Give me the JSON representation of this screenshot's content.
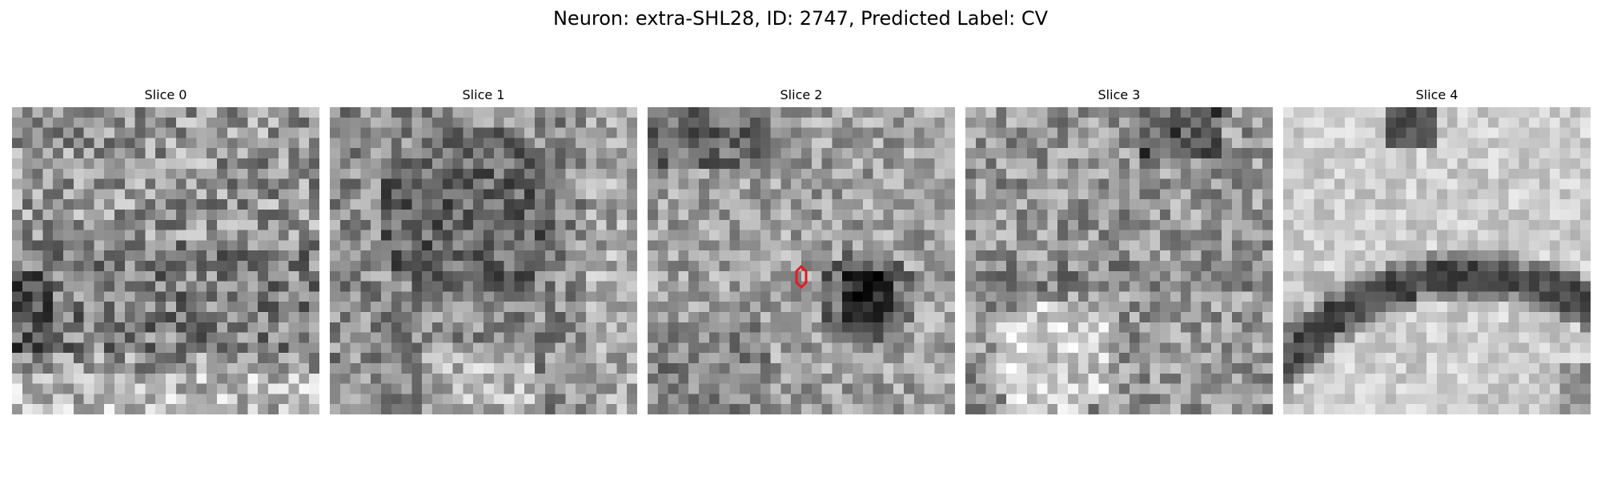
{
  "figure": {
    "title": "Neuron: extra-SHL28, ID: 2747, Predicted Label: CV"
  },
  "slices": [
    {
      "label": "Slice 0"
    },
    {
      "label": "Slice 1"
    },
    {
      "label": "Slice 2"
    },
    {
      "label": "Slice 3"
    },
    {
      "label": "Slice 4"
    }
  ],
  "colors": {
    "colormap": "gray",
    "marker": "#e8191e"
  },
  "marker": {
    "shape": "hexagon",
    "slice_index": 2
  }
}
